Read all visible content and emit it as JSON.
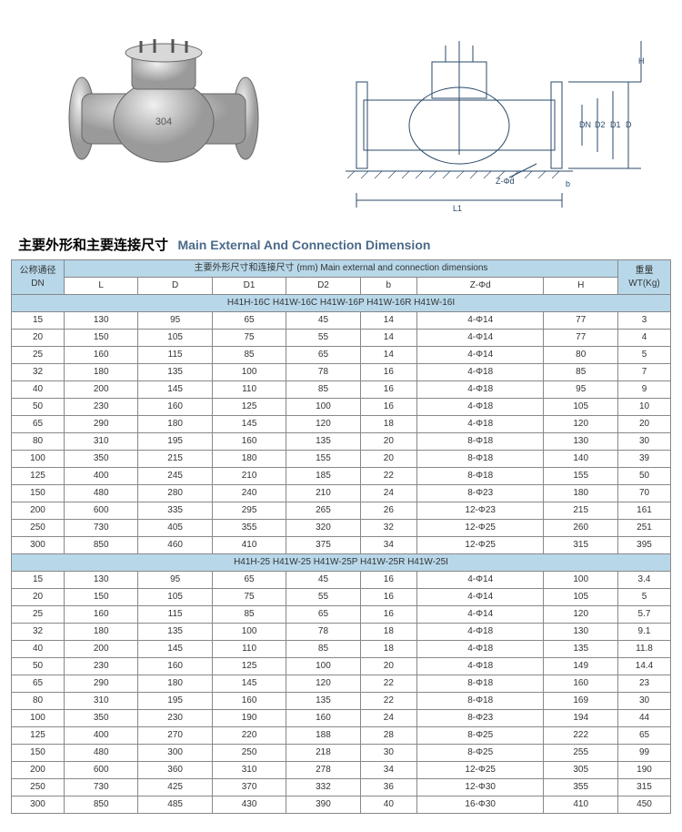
{
  "title_cn": "主要外形和主要连接尺寸",
  "title_en": "Main External And Connection Dimension",
  "header": {
    "dn": "公称通径\nDN",
    "main_span": "主要外形尺寸和连接尺寸 (mm) Main external and connection dimensions",
    "weight": "重量\nWT(Kg)",
    "cols": [
      "L",
      "D",
      "D1",
      "D2",
      "b",
      "Z-Φd",
      "H"
    ]
  },
  "sections": [
    {
      "label": "H41H-16C H41W-16C H41W-16P H41W-16R H41W-16I",
      "rows": [
        [
          "15",
          "130",
          "95",
          "65",
          "45",
          "14",
          "4-Φ14",
          "77",
          "3"
        ],
        [
          "20",
          "150",
          "105",
          "75",
          "55",
          "14",
          "4-Φ14",
          "77",
          "4"
        ],
        [
          "25",
          "160",
          "115",
          "85",
          "65",
          "14",
          "4-Φ14",
          "80",
          "5"
        ],
        [
          "32",
          "180",
          "135",
          "100",
          "78",
          "16",
          "4-Φ18",
          "85",
          "7"
        ],
        [
          "40",
          "200",
          "145",
          "110",
          "85",
          "16",
          "4-Φ18",
          "95",
          "9"
        ],
        [
          "50",
          "230",
          "160",
          "125",
          "100",
          "16",
          "4-Φ18",
          "105",
          "10"
        ],
        [
          "65",
          "290",
          "180",
          "145",
          "120",
          "18",
          "4-Φ18",
          "120",
          "20"
        ],
        [
          "80",
          "310",
          "195",
          "160",
          "135",
          "20",
          "8-Φ18",
          "130",
          "30"
        ],
        [
          "100",
          "350",
          "215",
          "180",
          "155",
          "20",
          "8-Φ18",
          "140",
          "39"
        ],
        [
          "125",
          "400",
          "245",
          "210",
          "185",
          "22",
          "8-Φ18",
          "155",
          "50"
        ],
        [
          "150",
          "480",
          "280",
          "240",
          "210",
          "24",
          "8-Φ23",
          "180",
          "70"
        ],
        [
          "200",
          "600",
          "335",
          "295",
          "265",
          "26",
          "12-Φ23",
          "215",
          "161"
        ],
        [
          "250",
          "730",
          "405",
          "355",
          "320",
          "32",
          "12-Φ25",
          "260",
          "251"
        ],
        [
          "300",
          "850",
          "460",
          "410",
          "375",
          "34",
          "12-Φ25",
          "315",
          "395"
        ]
      ]
    },
    {
      "label": "H41H-25 H41W-25 H41W-25P H41W-25R H41W-25I",
      "rows": [
        [
          "15",
          "130",
          "95",
          "65",
          "45",
          "16",
          "4-Φ14",
          "100",
          "3.4"
        ],
        [
          "20",
          "150",
          "105",
          "75",
          "55",
          "16",
          "4-Φ14",
          "105",
          "5"
        ],
        [
          "25",
          "160",
          "115",
          "85",
          "65",
          "16",
          "4-Φ14",
          "120",
          "5.7"
        ],
        [
          "32",
          "180",
          "135",
          "100",
          "78",
          "18",
          "4-Φ18",
          "130",
          "9.1"
        ],
        [
          "40",
          "200",
          "145",
          "110",
          "85",
          "18",
          "4-Φ18",
          "135",
          "11.8"
        ],
        [
          "50",
          "230",
          "160",
          "125",
          "100",
          "20",
          "4-Φ18",
          "149",
          "14.4"
        ],
        [
          "65",
          "290",
          "180",
          "145",
          "120",
          "22",
          "8-Φ18",
          "160",
          "23"
        ],
        [
          "80",
          "310",
          "195",
          "160",
          "135",
          "22",
          "8-Φ18",
          "169",
          "30"
        ],
        [
          "100",
          "350",
          "230",
          "190",
          "160",
          "24",
          "8-Φ23",
          "194",
          "44"
        ],
        [
          "125",
          "400",
          "270",
          "220",
          "188",
          "28",
          "8-Φ25",
          "222",
          "65"
        ],
        [
          "150",
          "480",
          "300",
          "250",
          "218",
          "30",
          "8-Φ25",
          "255",
          "99"
        ],
        [
          "200",
          "600",
          "360",
          "310",
          "278",
          "34",
          "12-Φ25",
          "305",
          "190"
        ],
        [
          "250",
          "730",
          "425",
          "370",
          "332",
          "36",
          "12-Φ30",
          "355",
          "315"
        ],
        [
          "300",
          "850",
          "485",
          "430",
          "390",
          "40",
          "16-Φ30",
          "410",
          "450"
        ]
      ]
    }
  ],
  "diagram_labels": {
    "H": "H",
    "D": "D",
    "D1": "D1",
    "D2": "D2",
    "DN": "DN",
    "L1": "L1",
    "b": "b",
    "zphi": "Z-Φd"
  },
  "colors": {
    "header_bg": "#b8d8ea",
    "border": "#888888",
    "title_en": "#4a6a8a"
  }
}
